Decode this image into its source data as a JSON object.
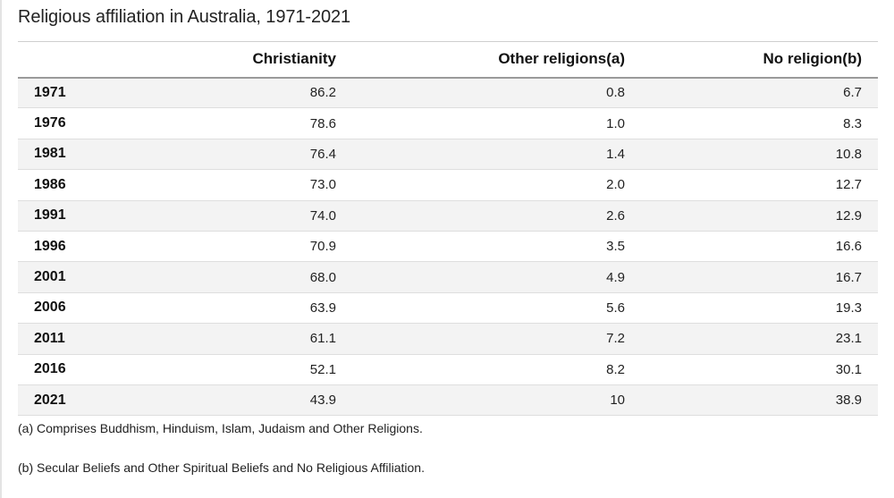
{
  "chart_data": {
    "type": "table",
    "title": "Religious affiliation in Australia, 1971-2021",
    "columns": [
      "",
      "Christianity",
      "Other religions(a)",
      "No religion(b)"
    ],
    "rows": [
      [
        "1971",
        "86.2",
        "0.8",
        "6.7"
      ],
      [
        "1976",
        "78.6",
        "1.0",
        "8.3"
      ],
      [
        "1981",
        "76.4",
        "1.4",
        "10.8"
      ],
      [
        "1986",
        "73.0",
        "2.0",
        "12.7"
      ],
      [
        "1991",
        "74.0",
        "2.6",
        "12.9"
      ],
      [
        "1996",
        "70.9",
        "3.5",
        "16.6"
      ],
      [
        "2001",
        "68.0",
        "4.9",
        "16.7"
      ],
      [
        "2006",
        "63.9",
        "5.6",
        "19.3"
      ],
      [
        "2011",
        "61.1",
        "7.2",
        "23.1"
      ],
      [
        "2016",
        "52.1",
        "8.2",
        "30.1"
      ],
      [
        "2021",
        "43.9",
        "10",
        "38.9"
      ]
    ],
    "footnotes": [
      "(a) Comprises Buddhism, Hinduism, Islam, Judaism and Other Religions.",
      "(b) Secular Beliefs and Other Spiritual Beliefs and No Religious Affiliation."
    ],
    "colors": {
      "stripe": "#f3f3f3",
      "header_rule": "#9a9a9a",
      "row_rule": "#dedede"
    }
  }
}
